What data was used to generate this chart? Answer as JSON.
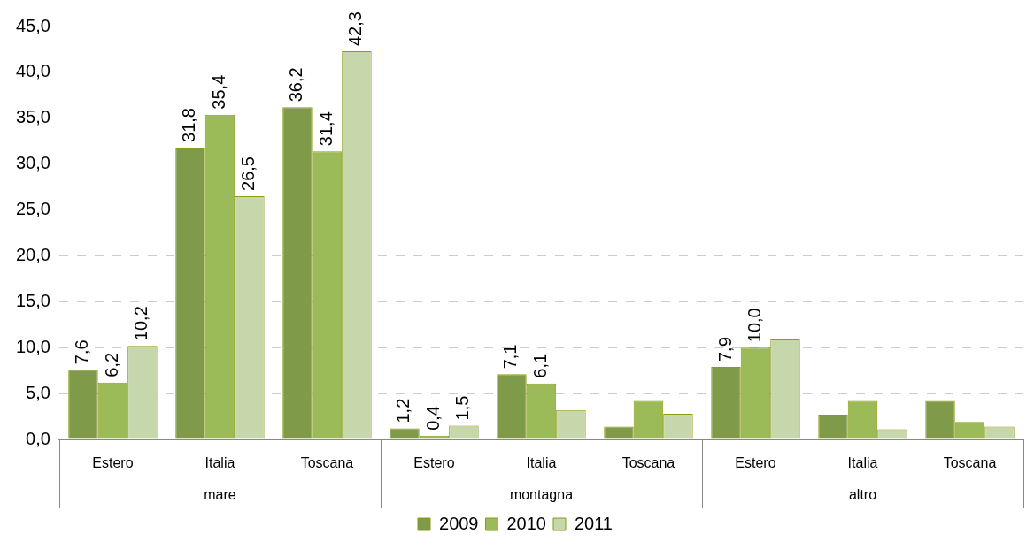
{
  "chart_data": {
    "type": "bar",
    "categories": [
      "Estero",
      "Italia",
      "Toscana",
      "Estero",
      "Italia",
      "Toscana",
      "Estero",
      "Italia",
      "Toscana"
    ],
    "series": [
      {
        "name": "2009",
        "color": "#7f9a48",
        "values": [
          7.6,
          31.8,
          36.2,
          1.2,
          7.1,
          1.4,
          7.9,
          2.7,
          4.2
        ],
        "value_labels": [
          "7,6",
          "31,8",
          "36,2",
          "1,2",
          "7,1",
          null,
          "7,9",
          null,
          null
        ]
      },
      {
        "name": "2010",
        "color": "#9bbb59",
        "values": [
          6.2,
          35.4,
          31.4,
          0.4,
          6.1,
          4.2,
          10.0,
          4.2,
          1.9
        ],
        "value_labels": [
          "6,2",
          "35,4",
          "31,4",
          "0,4",
          "6,1",
          null,
          "10,0",
          null,
          null
        ]
      },
      {
        "name": "2011",
        "color": "#c6d7ac",
        "values": [
          10.2,
          26.5,
          42.3,
          1.5,
          3.2,
          2.8,
          10.9,
          1.1,
          1.4
        ],
        "value_labels": [
          "10,2",
          "26,5",
          "42,3",
          "1,5",
          null,
          null,
          null,
          null,
          null
        ]
      }
    ],
    "annotations": [
      "mare",
      "montagna",
      "altro"
    ],
    "ylim": [
      0,
      45
    ],
    "yticks": [
      {
        "value": 0,
        "label": "0,0"
      },
      {
        "value": 5,
        "label": "5,0"
      },
      {
        "value": 10,
        "label": "10,0"
      },
      {
        "value": 15,
        "label": "15,0"
      },
      {
        "value": 20,
        "label": "20,0"
      },
      {
        "value": 25,
        "label": "25,0"
      },
      {
        "value": 30,
        "label": "30,0"
      },
      {
        "value": 35,
        "label": "35,0"
      },
      {
        "value": 40,
        "label": "40,0"
      },
      {
        "value": 45,
        "label": "45,0"
      }
    ],
    "grid": "y",
    "legend": "bottom"
  }
}
